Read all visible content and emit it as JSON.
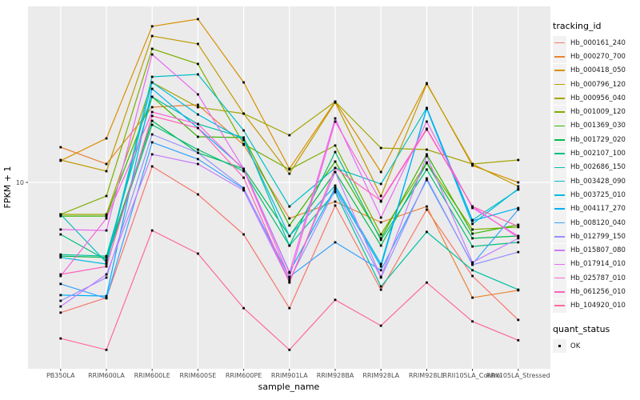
{
  "theme": {
    "panel_bg": "#EBEBEB",
    "grid_color": "#FFFFFF",
    "tick_text_color": "#4D4D4D",
    "axis_title_color": "#000000",
    "point_color": "#000000",
    "legend_key_bg": "#F2F2F2"
  },
  "chart_data": {
    "type": "line",
    "xlabel": "sample_name",
    "ylabel": "FPKM + 1",
    "y_scale": "log10",
    "y_ticks": [
      10
    ],
    "y_tick_label": "10",
    "grid": "major-on",
    "legend_position": "right",
    "point_shape": "filled-square",
    "categories": [
      "PB350LA",
      "RRIM600LA",
      "RRIM600LE",
      "RRIM600SE",
      "RRIM600PE",
      "RRIM901LA",
      "RRIM928BA",
      "RRIM928LA",
      "RRIM928LE",
      "RRII105LA_Control",
      "RRII105LA_Stressed"
    ],
    "legend": {
      "color_title": "tracking_id",
      "shape_title": "quant_status",
      "shape_items": [
        {
          "label": "OK",
          "marker": "filled-square"
        }
      ]
    },
    "series": [
      {
        "name": "Hb_000161_240",
        "color": "#F8766D",
        "values": [
          3.6,
          4.05,
          11.34,
          9.1,
          6.65,
          3.73,
          8.34,
          4.31,
          8.08,
          4.8,
          3.4
        ]
      },
      {
        "name": "Hb_000270_700",
        "color": "#EA8331",
        "values": [
          13.18,
          11.55,
          18.03,
          18.38,
          13.43,
          7.54,
          8.6,
          7.31,
          8.28,
          4.05,
          4.29
        ]
      },
      {
        "name": "Hb_000418_050",
        "color": "#D89000",
        "values": [
          11.85,
          14.12,
          34.0,
          35.98,
          21.91,
          11.13,
          18.84,
          10.85,
          21.77,
          11.41,
          10.0
        ]
      },
      {
        "name": "Hb_000796_120",
        "color": "#C09B00",
        "values": [
          11.92,
          10.92,
          31.53,
          29.62,
          17.15,
          10.71,
          18.72,
          8.99,
          21.63,
          11.55,
          9.69
        ]
      },
      {
        "name": "Hb_000956_040",
        "color": "#A3A500",
        "values": [
          7.78,
          7.78,
          21.91,
          18.03,
          17.15,
          14.48,
          18.84,
          13.1,
          12.93,
          11.55,
          11.92
        ]
      },
      {
        "name": "Hb_001009_120",
        "color": "#7CAE00",
        "values": [
          7.78,
          8.99,
          28.51,
          25.32,
          13.51,
          11.06,
          13.35,
          6.65,
          11.7,
          6.91,
          7.04
        ]
      },
      {
        "name": "Hb_001369_030",
        "color": "#39B600",
        "values": [
          7.68,
          7.68,
          19.57,
          14.3,
          14.21,
          7.13,
          11.77,
          6.45,
          12.46,
          6.69,
          7.17
        ]
      },
      {
        "name": "Hb_001729_020",
        "color": "#00BB4E",
        "values": [
          5.61,
          5.55,
          16.21,
          12.61,
          11.13,
          6.57,
          10.85,
          6.09,
          11.63,
          6.45,
          6.57
        ]
      },
      {
        "name": "Hb_002107_100",
        "color": "#00BF7D",
        "values": [
          6.65,
          5.44,
          15.71,
          12.93,
          10.92,
          6.09,
          12.69,
          6.37,
          11.06,
          6.05,
          6.25
        ]
      },
      {
        "name": "Hb_002686_150",
        "color": "#00C1A3",
        "values": [
          5.68,
          5.61,
          19.57,
          15.81,
          14.21,
          6.09,
          9.27,
          4.42,
          6.78,
          5.02,
          4.31
        ]
      },
      {
        "name": "Hb_003428_090",
        "color": "#00BFC4",
        "values": [
          7.78,
          5.34,
          22.89,
          23.32,
          15.03,
          8.28,
          11.2,
          9.88,
          17.92,
          7.44,
          9.45
        ]
      },
      {
        "name": "Hb_003725_010",
        "color": "#00BAE0",
        "values": [
          5.55,
          5.27,
          21.91,
          17.04,
          13.94,
          6.57,
          9.75,
          5.27,
          17.81,
          7.22,
          9.51
        ]
      },
      {
        "name": "Hb_004117_270",
        "color": "#00B0F6",
        "values": [
          4.13,
          4.1,
          20.83,
          15.32,
          11.13,
          4.95,
          9.57,
          5.17,
          17.92,
          7.4,
          8.18
        ]
      },
      {
        "name": "Hb_008120_040",
        "color": "#35A2FF",
        "values": [
          4.51,
          4.03,
          13.69,
          12.0,
          9.51,
          4.77,
          6.25,
          5.02,
          10.19,
          5.27,
          8.08
        ]
      },
      {
        "name": "Hb_012799_150",
        "color": "#9590FF",
        "values": [
          3.95,
          4.74,
          14.57,
          12.61,
          9.57,
          4.65,
          9.45,
          4.74,
          10.32,
          5.24,
          5.79
        ]
      },
      {
        "name": "Hb_015807_080",
        "color": "#C77CFF",
        "values": [
          3.78,
          4.86,
          12.46,
          11.55,
          9.39,
          4.59,
          10.85,
          4.77,
          12.3,
          5.34,
          6.45
        ]
      },
      {
        "name": "Hb_017914_010",
        "color": "#E76BF3",
        "values": [
          6.91,
          6.86,
          27.29,
          19.94,
          11.13,
          4.92,
          16.52,
          7.59,
          16.11,
          8.18,
          6.57
        ]
      },
      {
        "name": "Hb_025787_010",
        "color": "#FA62DB",
        "values": [
          4.8,
          7.54,
          17.37,
          15.81,
          11.06,
          4.74,
          16.11,
          8.6,
          15.13,
          8.28,
          6.49
        ]
      },
      {
        "name": "Hb_061256_010",
        "color": "#FF62BC",
        "values": [
          4.86,
          5.17,
          16.84,
          15.32,
          10.38,
          4.56,
          11.2,
          8.66,
          15.23,
          8.28,
          7.08
        ]
      },
      {
        "name": "Hb_104920_010",
        "color": "#FF6A98",
        "values": [
          2.94,
          2.69,
          6.86,
          5.72,
          3.73,
          2.69,
          3.98,
          3.25,
          4.56,
          3.36,
          2.9
        ]
      }
    ]
  }
}
